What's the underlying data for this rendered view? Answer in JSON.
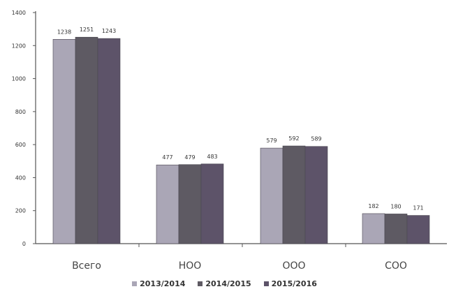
{
  "chart_data": {
    "type": "bar",
    "categories": [
      "Всего",
      "НОО",
      "ООО",
      "СОО"
    ],
    "series": [
      {
        "name": "2013/2014",
        "values": [
          1238,
          477,
          579,
          182
        ],
        "labels": [
          "1238",
          "477",
          "579",
          "182"
        ],
        "color": "#aaa6b6"
      },
      {
        "name": "2014/2015",
        "values": [
          1251,
          479,
          592,
          180
        ],
        "labels": [
          "1251",
          "479",
          "592",
          "180"
        ],
        "color": "#5e5a63"
      },
      {
        "name": "2015/2016",
        "values": [
          1243,
          483,
          589,
          171
        ],
        "labels": [
          "1243",
          "483",
          "589",
          "171"
        ],
        "color": "#5d5369"
      }
    ],
    "ylim": [
      0,
      1400
    ],
    "yticks": [
      0,
      200,
      400,
      600,
      800,
      1000,
      1200,
      1400
    ],
    "ytick_labels": [
      "0",
      "200",
      "400",
      "600",
      "800",
      "1000",
      "1200",
      "1400"
    ],
    "grid": false,
    "legend_position": "bottom"
  }
}
